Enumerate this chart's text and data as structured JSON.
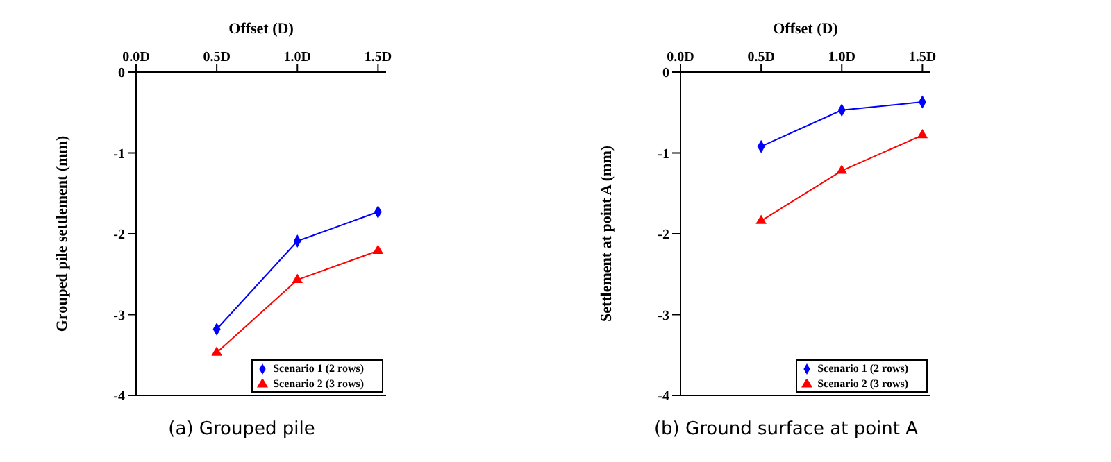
{
  "chart_data": [
    {
      "type": "line",
      "xlabel": "Offset (D)",
      "ylabel": "Grouped pile settlement (mm)",
      "x": [
        0.5,
        1.0,
        1.5
      ],
      "xlim": [
        0,
        1.55
      ],
      "xticks": [
        {
          "value": 0,
          "label": "0.0D"
        },
        {
          "value": 0.5,
          "label": "0.5D"
        },
        {
          "value": 1.0,
          "label": "1.0D"
        },
        {
          "value": 1.5,
          "label": "1.5D"
        }
      ],
      "ylim": [
        -4,
        0
      ],
      "yticks": [
        -4,
        -3,
        -2,
        -1,
        0
      ],
      "legend": "bottom right",
      "grid": false,
      "annotations": [
        "(a) Grouped pile"
      ],
      "series": [
        {
          "name": "Scenario 1 (2 rows)",
          "color": "#0000ff",
          "marker": "diamond",
          "values": [
            -3.18,
            -2.09,
            -1.73
          ]
        },
        {
          "name": "Scenario 2 (3 rows)",
          "color": "#ff0000",
          "marker": "triangle",
          "values": [
            -3.47,
            -2.57,
            -2.21
          ]
        }
      ]
    },
    {
      "type": "line",
      "xlabel": "Offset (D)",
      "ylabel": "Settlement at point A (mm)",
      "x": [
        0.5,
        1.0,
        1.5
      ],
      "xlim": [
        0,
        1.55
      ],
      "xticks": [
        {
          "value": 0,
          "label": "0.0D"
        },
        {
          "value": 0.5,
          "label": "0.5D"
        },
        {
          "value": 1.0,
          "label": "1.0D"
        },
        {
          "value": 1.5,
          "label": "1.5D"
        }
      ],
      "ylim": [
        -4,
        0
      ],
      "yticks": [
        -4,
        -3,
        -2,
        -1,
        0
      ],
      "legend": "bottom right",
      "grid": false,
      "annotations": [
        "(b) Ground surface at point A"
      ],
      "series": [
        {
          "name": "Scenario 1 (2 rows)",
          "color": "#0000ff",
          "marker": "diamond",
          "values": [
            -0.92,
            -0.47,
            -0.37
          ]
        },
        {
          "name": "Scenario 2 (3 rows)",
          "color": "#ff0000",
          "marker": "triangle",
          "values": [
            -1.84,
            -1.22,
            -0.78
          ]
        }
      ]
    }
  ]
}
